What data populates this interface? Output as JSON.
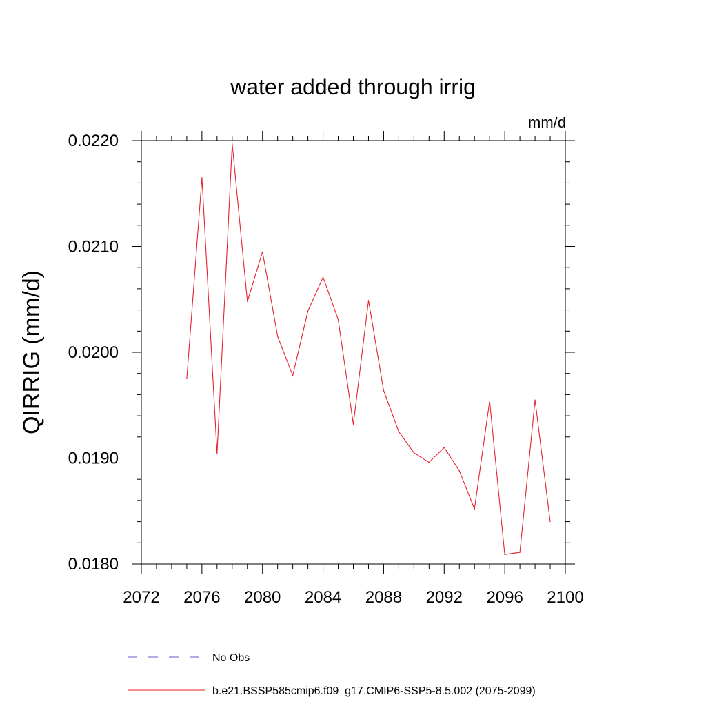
{
  "chart_data": {
    "type": "line",
    "title": "water added through irrig",
    "units": "mm/d",
    "xlabel": "",
    "ylabel": "QIRRIG  (mm/d)",
    "xlim": [
      2072,
      2100
    ],
    "ylim": [
      0.018,
      0.022
    ],
    "xticks": [
      2072,
      2076,
      2080,
      2084,
      2088,
      2092,
      2096,
      2100
    ],
    "yticks": [
      0.018,
      0.019,
      0.02,
      0.021,
      0.022
    ],
    "ytick_labels": [
      "0.0180",
      "0.0190",
      "0.0200",
      "0.0210",
      "0.0220"
    ],
    "grid": false,
    "legend_position": "bottom",
    "series": [
      {
        "name": "b.e21.BSSP585cmip6.f09_g17.CMIP6-SSP5-8.5.002 (2075-2099)",
        "color": "#e8202a",
        "style": "solid",
        "x": [
          2075,
          2076,
          2077,
          2078,
          2079,
          2080,
          2081,
          2082,
          2083,
          2084,
          2085,
          2086,
          2087,
          2088,
          2089,
          2090,
          2091,
          2092,
          2093,
          2094,
          2095,
          2096,
          2097,
          2098,
          2099
        ],
        "values": [
          0.01975,
          0.02165,
          0.01904,
          0.02197,
          0.02048,
          0.02095,
          0.02015,
          0.01978,
          0.02039,
          0.02071,
          0.02031,
          0.01932,
          0.02049,
          0.01964,
          0.01925,
          0.01905,
          0.01896,
          0.0191,
          0.01888,
          0.01852,
          0.01954,
          0.01809,
          0.01811,
          0.01955,
          0.0184
        ]
      },
      {
        "name": "No Obs",
        "color": "#6a5acd",
        "style": "dashed",
        "x": [],
        "values": []
      }
    ]
  }
}
